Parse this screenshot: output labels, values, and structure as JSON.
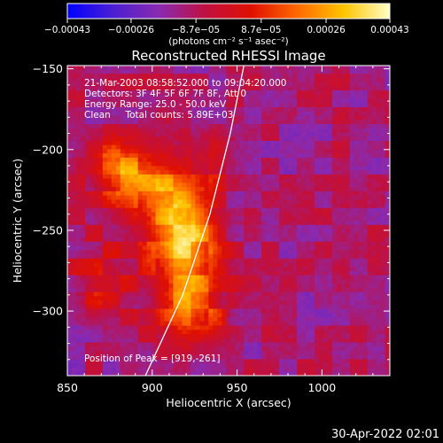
{
  "chart_data": {
    "type": "heatmap",
    "title": "Reconstructed RHESSI Image",
    "xlabel": "Heliocentric X (arcsec)",
    "ylabel": "Heliocentric Y (arcsec)",
    "xlim": [
      850,
      1040
    ],
    "ylim": [
      -340,
      -148
    ],
    "x_ticks": [
      850,
      900,
      950,
      1000
    ],
    "y_ticks": [
      -150,
      -200,
      -250,
      -300
    ],
    "x_tick_labels": [
      "850",
      "900",
      "950",
      "1000"
    ],
    "y_tick_labels": [
      "−150",
      "−200",
      "−250",
      "−300"
    ],
    "colorbar": {
      "range": [
        -0.00043,
        0.00043
      ],
      "tick_values": [
        -0.00043,
        -0.00026,
        -8.7e-05,
        8.7e-05,
        0.00026,
        0.00043
      ],
      "tick_labels": [
        "−0.00043",
        "−0.00026",
        "−8.7e−05",
        "8.7e−05",
        "0.00026",
        "0.00043"
      ],
      "unit_label": "(photons cm⁻² s⁻¹ asec⁻²)"
    },
    "colors": {
      "colorbar_stops": [
        "#0000ff",
        "#4b1fd2",
        "#8a2ab0",
        "#c01040",
        "#e01000",
        "#ff6a00",
        "#ffc400",
        "#ffffc8"
      ],
      "background_low": "#5a1e9c"
    },
    "sources": [
      {
        "x": 919,
        "y": -261,
        "peak": 0.00043,
        "sigma_x": 14,
        "sigma_y": 24
      },
      {
        "x": 880,
        "y": -212,
        "peak": 0.00028,
        "sigma_x": 14,
        "sigma_y": 12
      },
      {
        "x": 905,
        "y": -228,
        "peak": 0.00024,
        "sigma_x": 16,
        "sigma_y": 18
      },
      {
        "x": 925,
        "y": -302,
        "peak": 0.00022,
        "sigma_x": 14,
        "sigma_y": 12
      },
      {
        "x": 872,
        "y": -282,
        "peak": 0.00018,
        "sigma_x": 12,
        "sigma_y": 16
      },
      {
        "x": 935,
        "y": -200,
        "peak": 0.00012,
        "sigma_x": 12,
        "sigma_y": 12
      }
    ],
    "limb_curve": [
      [
        896,
        -340
      ],
      [
        918,
        -290
      ],
      [
        934,
        -240
      ],
      [
        946,
        -190
      ],
      [
        954,
        -148
      ]
    ],
    "annotations": {
      "time": "21-Mar-2003 08:58:52.000 to 09:04:20.000",
      "detectors": "Detectors: 3F 4F 5F 6F 7F 8F, Att 0",
      "energy": "Energy Range: 25.0 - 50.0 keV",
      "method": "Clean     Total counts: 5.89E+03",
      "peak": "Position of Peak = [919,-261]"
    },
    "footer_timestamp": "30-Apr-2022 02:01"
  }
}
